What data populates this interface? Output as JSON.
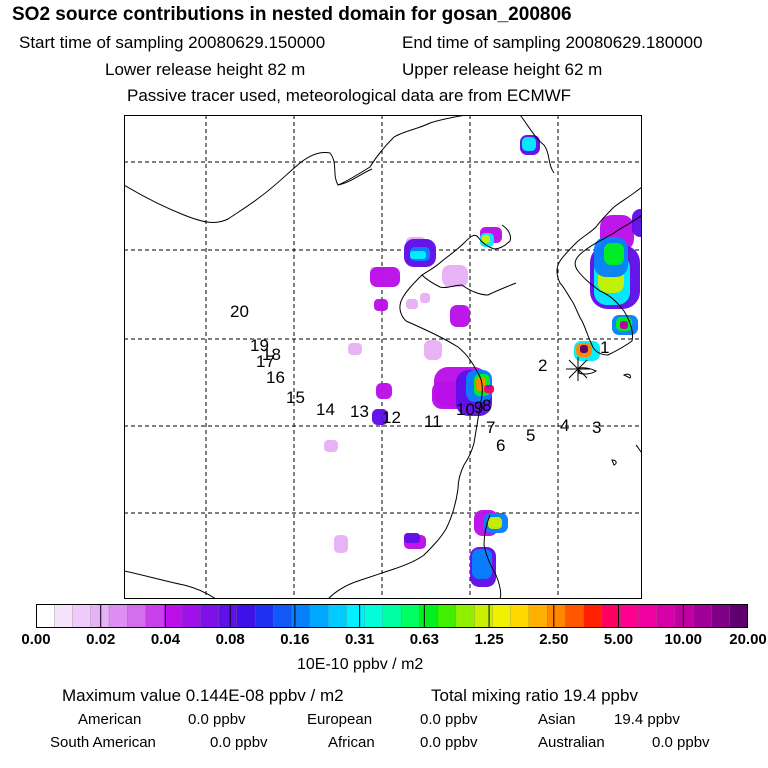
{
  "header": {
    "title": "SO2 source contributions in nested domain for gosan_200806",
    "start": "Start time of sampling 20080629.150000",
    "end": "End time of sampling 20080629.180000",
    "lower": "Lower release height   82 m",
    "upper": "Upper release height   62 m",
    "note": "Passive tracer used, meteorological data are from ECMWF"
  },
  "colorbar": {
    "ticks": [
      "0.00",
      "0.02",
      "0.04",
      "0.08",
      "0.16",
      "0.31",
      "0.63",
      "1.25",
      "2.50",
      "5.00",
      "10.00",
      "20.00"
    ],
    "colors": [
      "#ffffff",
      "#f6e4fb",
      "#eecbf8",
      "#e6b1f5",
      "#dc8ff0",
      "#d36fed",
      "#c840ea",
      "#bb10e8",
      "#a010e8",
      "#8010e8",
      "#6010e8",
      "#4010e8",
      "#2030f0",
      "#1058f8",
      "#0880fc",
      "#00a8ff",
      "#00ccff",
      "#00f0ff",
      "#00ffd8",
      "#00ffa0",
      "#00ff60",
      "#00f020",
      "#40f000",
      "#90f000",
      "#c8f000",
      "#f0f000",
      "#ffd800",
      "#ffb000",
      "#ff8800",
      "#ff5800",
      "#ff2000",
      "#ff0060",
      "#ff0090",
      "#f000a0",
      "#d800a8",
      "#c000a0",
      "#a00098",
      "#800088",
      "#600070"
    ],
    "units": "10E-10 ppbv / m2"
  },
  "summary": {
    "max": "Maximum value  0.144E-08 ppbv / m2",
    "total": "Total mixing ratio      19.4 ppbv",
    "regions": [
      {
        "label": "American",
        "value": "0.0 ppbv"
      },
      {
        "label": "European",
        "value": "0.0 ppbv"
      },
      {
        "label": "Asian",
        "value": "19.4 ppbv"
      },
      {
        "label": "South American",
        "value": "0.0 ppbv"
      },
      {
        "label": "African",
        "value": "0.0 ppbv"
      },
      {
        "label": "Australian",
        "value": "0.0 ppbv"
      }
    ]
  },
  "chart_data": {
    "type": "heatmap",
    "title": "SO2 source contributions in nested domain for gosan_200806",
    "scale": "log",
    "color_range": [
      0.0,
      20.0
    ],
    "grid": true,
    "receptor": "gosan",
    "trajectory_labels": [
      "1",
      "2",
      "3",
      "4",
      "5",
      "6",
      "7",
      "8",
      "9",
      "10",
      "11",
      "12",
      "13",
      "14",
      "15",
      "16",
      "17",
      "18",
      "19",
      "20"
    ],
    "hotspots": [
      {
        "value": 20.0
      },
      {
        "value": 10.0
      },
      {
        "value": 5.0
      },
      {
        "value": 2.5
      },
      {
        "value": 1.25
      },
      {
        "value": 0.63
      },
      {
        "value": 0.31
      },
      {
        "value": 0.16
      },
      {
        "value": 0.08
      },
      {
        "value": 0.04
      },
      {
        "value": 0.02
      }
    ]
  }
}
